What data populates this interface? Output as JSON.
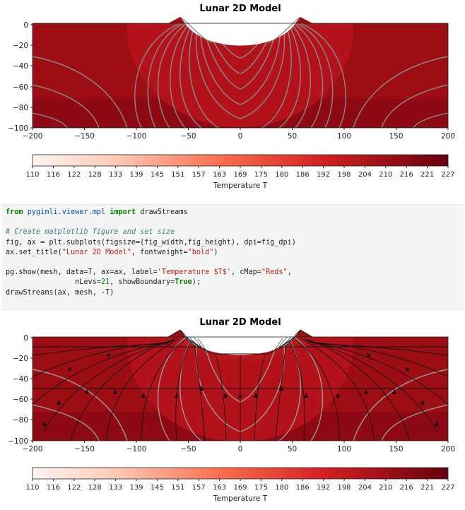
{
  "figure1": {
    "title": "Lunar 2D Model",
    "x_ticks": [
      "−200",
      "−150",
      "−100",
      "−50",
      "0",
      "50",
      "100",
      "150",
      "200"
    ],
    "y_ticks": [
      "0",
      "−20",
      "−40",
      "−60",
      "−80",
      "−100"
    ],
    "colorbar_label": "Temperature T",
    "colorbar_ticks": [
      "110",
      "116",
      "122",
      "128",
      "133",
      "139",
      "145",
      "151",
      "157",
      "163",
      "169",
      "175",
      "180",
      "186",
      "192",
      "198",
      "204",
      "210",
      "216",
      "221",
      "227"
    ]
  },
  "code": {
    "line1": {
      "kw1": "from",
      "mod": "pygimli.viewer.mpl",
      "kw2": "import",
      "name": "drawStreams"
    },
    "line2": "# Create matplotlib figure and set size",
    "line3": "fig, ax = plt.subplots(figsize=(fig_width,fig_height), dpi=fig_dpi)",
    "line4": {
      "a": "ax.set_title(",
      "s1": "\"Lunar 2D Model\"",
      "b": ", fontweight=",
      "s2": "\"bold\"",
      "c": ")"
    },
    "line5": {
      "a": "pg.show(mesh, data=T, ax=ax, label=",
      "s1": "'Temperature $T$'",
      "b": ", cMap=",
      "s2": "\"Reds\"",
      "c": ","
    },
    "line6": {
      "a": "                nLevs=",
      "n": "21",
      "b": ", showBoundary=",
      "t": "True",
      "c": ");"
    },
    "line7": "drawStreams(ax, mesh, -T)"
  },
  "figure2": {
    "title": "Lunar 2D Model",
    "x_ticks": [
      "−200",
      "−150",
      "−100",
      "−50",
      "0",
      "50",
      "100",
      "150",
      "200"
    ],
    "y_ticks": [
      "0",
      "−20",
      "−40",
      "−60",
      "−80",
      "−100"
    ],
    "colorbar_label": "Temperature T",
    "colorbar_ticks": [
      "110",
      "116",
      "122",
      "128",
      "133",
      "139",
      "145",
      "151",
      "157",
      "163",
      "169",
      "175",
      "180",
      "186",
      "192",
      "198",
      "204",
      "210",
      "216",
      "221",
      "227"
    ]
  },
  "colors": {
    "reds_low": "#fff5f0",
    "reds_mid": "#f4503a",
    "reds_high": "#67000d",
    "contour": "#8a8a8a"
  }
}
